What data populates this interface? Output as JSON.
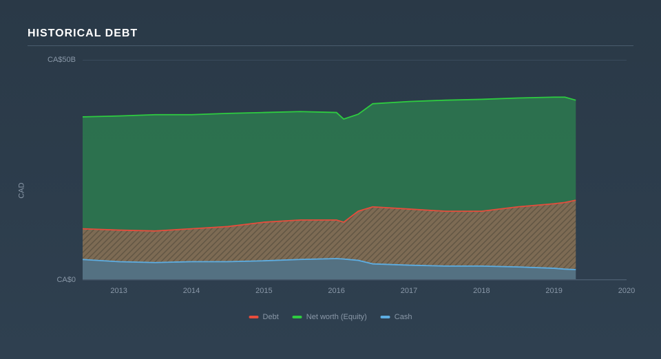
{
  "title": "HISTORICAL DEBT",
  "chart": {
    "type": "area-stacked",
    "background_color": "#2c3e50",
    "grid_color": "#3a4b5c",
    "axis_text_color": "#8a98a8",
    "title_color": "#ffffff",
    "y_label": "CAD",
    "y_ticks": [
      {
        "value": 0,
        "label": "CA$0"
      },
      {
        "value": 50,
        "label": "CA$50B"
      }
    ],
    "ylim": [
      0,
      50
    ],
    "x_ticks": [
      "2013",
      "2014",
      "2015",
      "2016",
      "2017",
      "2018",
      "2019",
      "2020"
    ],
    "x_domain": [
      2012.5,
      2020
    ],
    "data_xmax": 2019.3,
    "legend": [
      {
        "name": "Debt",
        "color": "#e74c3c"
      },
      {
        "name": "Net worth (Equity)",
        "color": "#2ecc40"
      },
      {
        "name": "Cash",
        "color": "#5dade2"
      }
    ],
    "series": {
      "x": [
        2012.5,
        2013,
        2013.5,
        2014,
        2014.5,
        2015,
        2015.5,
        2016,
        2016.1,
        2016.3,
        2016.5,
        2017,
        2017.5,
        2018,
        2018.5,
        2019,
        2019.15,
        2019.3
      ],
      "cash": [
        4.5,
        4.0,
        3.8,
        4.0,
        4.0,
        4.2,
        4.5,
        4.7,
        4.6,
        4.3,
        3.5,
        3.2,
        3.0,
        3.0,
        2.8,
        2.5,
        2.3,
        2.2
      ],
      "debt": [
        11.5,
        11.2,
        11.0,
        11.5,
        12.0,
        13.0,
        13.5,
        13.5,
        13.0,
        15.5,
        16.5,
        16.0,
        15.5,
        15.5,
        16.5,
        17.2,
        17.5,
        18.0
      ],
      "equity": [
        37.0,
        37.2,
        37.5,
        37.5,
        37.8,
        38.0,
        38.2,
        38.0,
        36.5,
        37.6,
        40.0,
        40.5,
        40.8,
        41.0,
        41.3,
        41.5,
        41.5,
        40.8
      ]
    },
    "colors": {
      "cash_fill": "#5b7a8c",
      "cash_line": "#5dade2",
      "debt_fill": "#8b7355",
      "debt_line": "#e74c3c",
      "equity_fill": "#2d7a4f",
      "equity_line": "#2ecc40",
      "hatch_color": "#6b5a42"
    },
    "line_width": 1.8,
    "fill_opacity": 0.85
  }
}
